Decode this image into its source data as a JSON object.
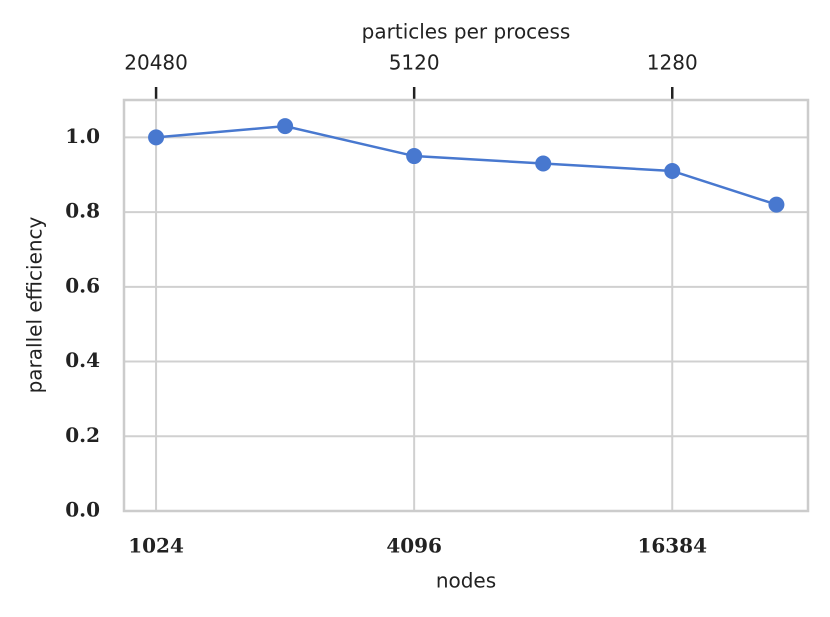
{
  "chart_data": {
    "type": "line",
    "xlabel": "nodes",
    "ylabel": "parallel efficiency",
    "x2label": "particles per process",
    "x": [
      1024,
      2048,
      4096,
      8192,
      16384,
      28672
    ],
    "series": [
      {
        "name": "parallel efficiency",
        "color": "#4878cf",
        "values": [
          1.0,
          1.03,
          0.95,
          0.93,
          0.91,
          0.82
        ]
      }
    ],
    "xscale": "log",
    "xlim": [
      862,
      33970
    ],
    "xticks": [
      1024,
      4096,
      16384
    ],
    "x2scale": "log",
    "x2lim": [
      24330,
      617.4
    ],
    "x2ticks": [
      20480,
      5120,
      1280
    ],
    "ylim": [
      0,
      1.1
    ],
    "yticks": [
      {
        "value": 0,
        "label": "0.0"
      },
      0.2,
      0.4,
      0.6,
      0.8,
      {
        "value": 1,
        "label": "1.0"
      }
    ],
    "grid": true
  }
}
